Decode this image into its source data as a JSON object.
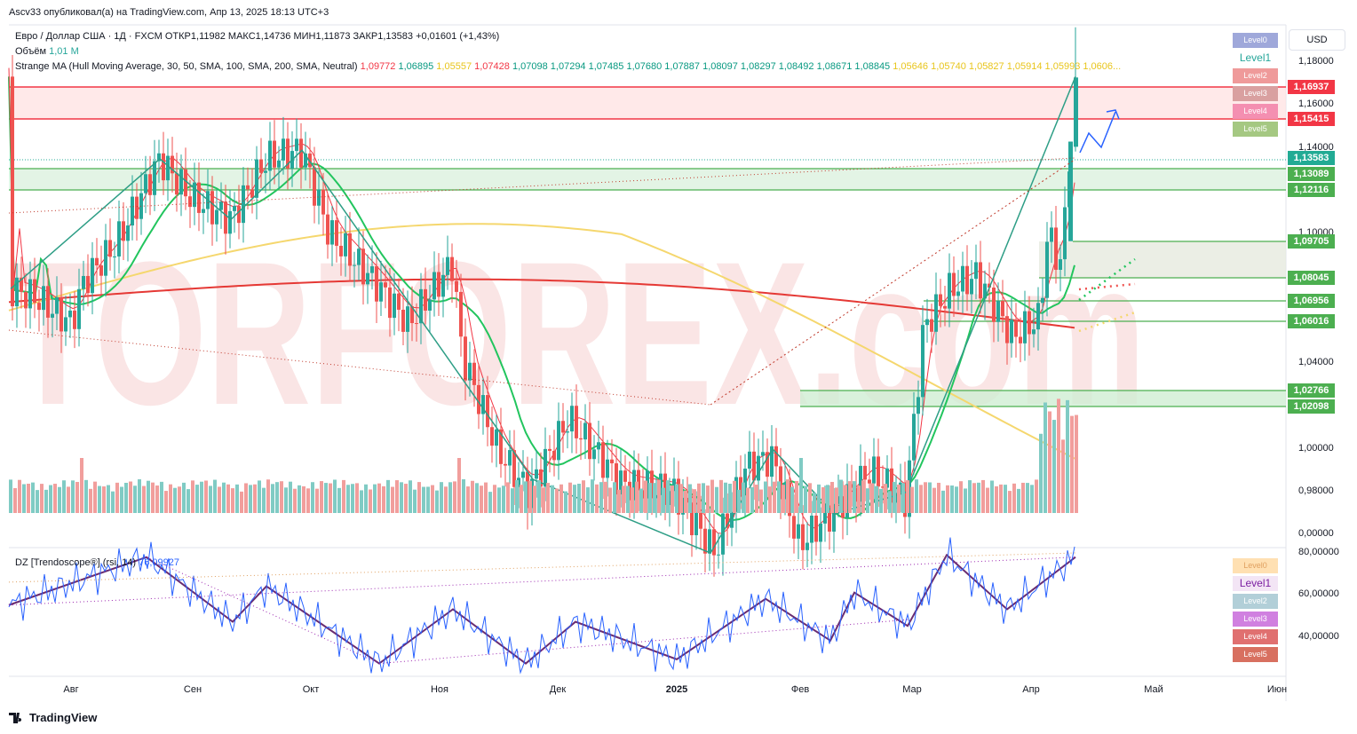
{
  "header": {
    "publisher": "Ascv33 опубликовал(а) на TradingView.com, Апр 13, 2025 18:13 UTC+3",
    "currency": "USD"
  },
  "symbol_line": {
    "name": "Евро / Доллар США · 1Д · FXCM",
    "open_label": "ОТКР",
    "open": "1,11982",
    "high_label": "МАКС",
    "high": "1,14736",
    "low_label": "МИН",
    "low": "1,11873",
    "close_label": "ЗАКР",
    "close": "1,13583",
    "change": "+0,01601 (+1,43%)"
  },
  "volume_line": {
    "label": "Объём",
    "value": "1,01 M"
  },
  "ma_line": {
    "label": "Strange MA (Hull Moving Average, 30, 50, SMA, 100, SMA, 200, SMA, Neutral)",
    "values": [
      {
        "v": "1,09772",
        "color": "#f23645"
      },
      {
        "v": "1,06895",
        "color": "#089981"
      },
      {
        "v": "1,05557",
        "color": "#e8c51c"
      },
      {
        "v": "1,07428",
        "color": "#f23645"
      },
      {
        "v": "1,07098",
        "color": "#089981"
      },
      {
        "v": "1,07294",
        "color": "#089981"
      },
      {
        "v": "1,07485",
        "color": "#089981"
      },
      {
        "v": "1,07680",
        "color": "#089981"
      },
      {
        "v": "1,07887",
        "color": "#089981"
      },
      {
        "v": "1,08097",
        "color": "#089981"
      },
      {
        "v": "1,08297",
        "color": "#089981"
      },
      {
        "v": "1,08492",
        "color": "#089981"
      },
      {
        "v": "1,08671",
        "color": "#089981"
      },
      {
        "v": "1,08845",
        "color": "#089981"
      },
      {
        "v": "1,05646",
        "color": "#e8c51c"
      },
      {
        "v": "1,05740",
        "color": "#e8c51c"
      },
      {
        "v": "1,05827",
        "color": "#e8c51c"
      },
      {
        "v": "1,05914",
        "color": "#e8c51c"
      },
      {
        "v": "1,05993",
        "color": "#e8c51c"
      },
      {
        "v": "1,0606...",
        "color": "#e8c51c"
      }
    ]
  },
  "rsi_line": {
    "label": "DZ [Trendoscope®] (rsi, 14)",
    "value": "76,09927"
  },
  "main_levels": [
    {
      "label": "Level0",
      "color": "#9fa8da"
    },
    {
      "label": "Level1",
      "color": "#ffffff",
      "text_color": "#26a69a"
    },
    {
      "label": "Level2",
      "color": "#ef9a9a"
    },
    {
      "label": "Level3",
      "color": "#d9a0a0"
    },
    {
      "label": "Level4",
      "color": "#f48fb1"
    },
    {
      "label": "Level5",
      "color": "#a5c882"
    }
  ],
  "rsi_levels": [
    {
      "label": "Level0",
      "color": "#ffe0b2",
      "text_color": "#e0a060"
    },
    {
      "label": "Level1",
      "color": "#f3e5f5",
      "text_color": "#7b1fa2"
    },
    {
      "label": "Level2",
      "color": "#b2cfd8"
    },
    {
      "label": "Level3",
      "color": "#d080e0"
    },
    {
      "label": "Level4",
      "color": "#e07070"
    },
    {
      "label": "Level5",
      "color": "#d87060"
    }
  ],
  "price_axis": [
    "1,18000",
    "1,16000",
    "1,14000",
    "1,10000",
    "1,04000",
    "1,00000",
    "0,98000",
    "0,00000"
  ],
  "rsi_axis": [
    "80,00000",
    "60,00000",
    "40,00000"
  ],
  "price_tags": [
    {
      "text": "1,16937",
      "color": "#f23645"
    },
    {
      "text": "1,15415",
      "color": "#f23645"
    },
    {
      "text": "1,13583",
      "color": "#22ab94"
    },
    {
      "text": "1,13089",
      "color": "#4caf50"
    },
    {
      "text": "1,12116",
      "color": "#4caf50"
    },
    {
      "text": "1,09705",
      "color": "#4caf50"
    },
    {
      "text": "1,08045",
      "color": "#4caf50"
    },
    {
      "text": "1,06956",
      "color": "#4caf50"
    },
    {
      "text": "1,06016",
      "color": "#4caf50"
    },
    {
      "text": "1,02766",
      "color": "#4caf50"
    },
    {
      "text": "1,02098",
      "color": "#4caf50"
    }
  ],
  "months": [
    "Авг",
    "Сен",
    "Окт",
    "Ноя",
    "Дек",
    "2025",
    "Фев",
    "Мар",
    "Апр",
    "Май",
    "Июн"
  ],
  "watermark": "TORFOREX.com",
  "footer": {
    "brand": "TradingView"
  },
  "colors": {
    "up": "#26a69a",
    "down": "#ef5350",
    "hull": "#f23645",
    "ma50": "#22c55e",
    "ma100": "#f5d76e",
    "ma200": "#e53935",
    "rsi": "#2962ff",
    "zigzag": "#6a2c70"
  },
  "chart_data": {
    "type": "candlestick",
    "symbol": "EURUSD",
    "timeframe": "1D",
    "last": {
      "open": 1.11982,
      "high": 1.14736,
      "low": 1.11873,
      "close": 1.13583,
      "change": 0.01601,
      "change_pct": 1.43
    },
    "horizontal_levels": [
      1.16937,
      1.15415,
      1.13089,
      1.12116,
      1.09705,
      1.08045,
      1.06956,
      1.06016,
      1.02766,
      1.02098
    ],
    "price_path_approx": [
      {
        "month": "Авг",
        "price": 1.09
      },
      {
        "month": "Сен",
        "price": 1.11
      },
      {
        "month": "Окт",
        "price": 1.095
      },
      {
        "month": "Ноя",
        "price": 1.07
      },
      {
        "month": "Дек",
        "price": 1.05
      },
      {
        "month": "2025",
        "price": 1.035
      },
      {
        "month": "Фев",
        "price": 1.04
      },
      {
        "month": "Мар",
        "price": 1.08
      },
      {
        "month": "Апр",
        "price": 1.1
      },
      {
        "month": "Апр",
        "price": 1.13583
      }
    ],
    "rsi_last": 76.09927,
    "volume_last": "1,01 M"
  }
}
